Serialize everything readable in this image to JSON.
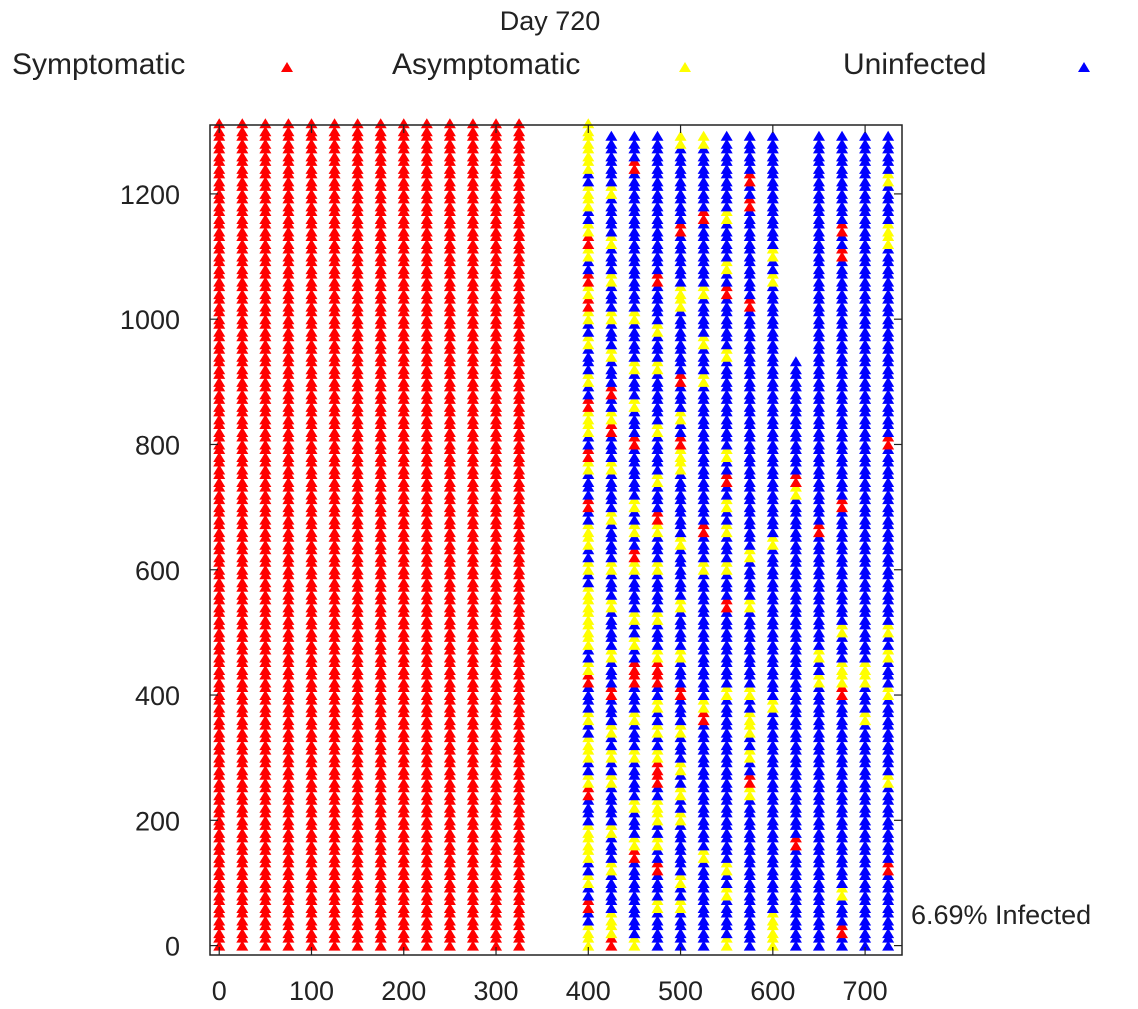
{
  "chart_data": {
    "type": "scatter",
    "title": "Day 720",
    "annotation": "6.69% Infected",
    "xlim": [
      -10,
      740
    ],
    "ylim": [
      -15,
      1310
    ],
    "xticks": [
      0,
      100,
      200,
      300,
      400,
      500,
      600,
      700
    ],
    "yticks": [
      0,
      200,
      400,
      600,
      800,
      1000,
      1200
    ],
    "marker": "triangle",
    "grid": false,
    "legend_position": "top",
    "row_step": 20,
    "row_max": 1300,
    "colors": {
      "Symptomatic": "#ff0000",
      "Asymptomatic": "#ffff00",
      "Uninfected": "#0000ff"
    },
    "series": [
      {
        "name": "Symptomatic",
        "marker_color": "#ff0000"
      },
      {
        "name": "Asymptomatic",
        "marker_color": "#ffff00"
      },
      {
        "name": "Uninfected",
        "marker_color": "#0000ff"
      }
    ],
    "columns": [
      {
        "x": 0,
        "default": "Symptomatic",
        "top": 1300
      },
      {
        "x": 25,
        "default": "Symptomatic",
        "top": 1300
      },
      {
        "x": 50,
        "default": "Symptomatic",
        "top": 1300
      },
      {
        "x": 75,
        "default": "Symptomatic",
        "top": 1300
      },
      {
        "x": 100,
        "default": "Symptomatic",
        "top": 1300
      },
      {
        "x": 125,
        "default": "Symptomatic",
        "top": 1300
      },
      {
        "x": 150,
        "default": "Symptomatic",
        "top": 1300
      },
      {
        "x": 175,
        "default": "Symptomatic",
        "top": 1300
      },
      {
        "x": 200,
        "default": "Symptomatic",
        "top": 1300
      },
      {
        "x": 225,
        "default": "Symptomatic",
        "top": 1300
      },
      {
        "x": 250,
        "default": "Symptomatic",
        "top": 1300
      },
      {
        "x": 275,
        "default": "Symptomatic",
        "top": 1300
      },
      {
        "x": 300,
        "default": "Symptomatic",
        "top": 1300
      },
      {
        "x": 325,
        "default": "Symptomatic",
        "top": 1300
      },
      {
        "x": 400,
        "default": "Uninfected",
        "top": 1300,
        "overrides": [
          [
            "Asymptomatic",
            [
              0,
              20,
              100,
              140,
              160,
              180,
              260,
              300,
              320,
              360,
              440,
              480,
              500,
              520,
              540,
              560,
              600,
              640,
              660,
              700,
              760,
              820,
              840,
              900,
              960,
              1000,
              1040,
              1060,
              1100,
              1140,
              1180,
              1200,
              1240,
              1260,
              1280,
              1300
            ]
          ],
          [
            "Symptomatic",
            [
              60,
              240,
              420,
              700,
              780,
              860,
              1020,
              1060,
              1120
            ]
          ]
        ]
      },
      {
        "x": 425,
        "default": "Uninfected",
        "top": 1280,
        "overrides": [
          [
            "Asymptomatic",
            [
              20,
              40,
              120,
              180,
              260,
              300,
              340,
              400,
              460,
              540,
              600,
              680,
              760,
              840,
              940,
              1000,
              1060,
              1120,
              1200,
              1300
            ]
          ],
          [
            "Symptomatic",
            [
              0,
              400,
              820,
              880
            ]
          ]
        ]
      },
      {
        "x": 450,
        "default": "Uninfected",
        "top": 1280,
        "overrides": [
          [
            "Asymptomatic",
            [
              0,
              160,
              220,
              300,
              360,
              480,
              520,
              600,
              660,
              700,
              800,
              860,
              920,
              1000
            ]
          ],
          [
            "Symptomatic",
            [
              140,
              420,
              440,
              620,
              800,
              1240
            ]
          ]
        ]
      },
      {
        "x": 475,
        "default": "Uninfected",
        "top": 1280,
        "overrides": [
          [
            "Asymptomatic",
            [
              60,
              160,
              200,
              220,
              300,
              340,
              380,
              420,
              460,
              520,
              600,
              660,
              740,
              820,
              920,
              980
            ]
          ],
          [
            "Symptomatic",
            [
              120,
              260,
              280,
              420,
              440,
              680,
              1060
            ]
          ]
        ]
      },
      {
        "x": 500,
        "default": "Uninfected",
        "top": 1280,
        "overrides": [
          [
            "Asymptomatic",
            [
              60,
              100,
              200,
              240,
              280,
              340,
              460,
              540,
              640,
              760,
              780,
              840,
              1020,
              1040,
              1280
            ]
          ],
          [
            "Symptomatic",
            [
              400,
              800,
              900,
              1140
            ]
          ]
        ]
      },
      {
        "x": 525,
        "default": "Uninfected",
        "top": 1280,
        "overrides": [
          [
            "Asymptomatic",
            [
              140,
              380,
              600,
              900,
              960,
              1040,
              1280
            ]
          ],
          [
            "Symptomatic",
            [
              360,
              660,
              1160
            ]
          ]
        ]
      },
      {
        "x": 550,
        "default": "Uninfected",
        "top": 1280,
        "overrides": [
          [
            "Asymptomatic",
            [
              0,
              80,
              120,
              400,
              600,
              660,
              700,
              780,
              940,
              1080,
              1160
            ]
          ],
          [
            "Symptomatic",
            [
              540,
              740,
              1040
            ]
          ]
        ]
      },
      {
        "x": 575,
        "default": "Uninfected",
        "top": 1280,
        "overrides": [
          [
            "Asymptomatic",
            [
              240,
              300,
              340,
              360,
              400,
              540,
              620
            ]
          ],
          [
            "Symptomatic",
            [
              260,
              1020,
              1180,
              1220
            ]
          ]
        ]
      },
      {
        "x": 600,
        "default": "Uninfected",
        "top": 1280,
        "overrides": [
          [
            "Asymptomatic",
            [
              0,
              20,
              40,
              380,
              640,
              1060,
              1100
            ]
          ]
        ]
      },
      {
        "x": 625,
        "default": "Uninfected",
        "top": 920,
        "overrides": [
          [
            "Asymptomatic",
            [
              720
            ]
          ],
          [
            "Symptomatic",
            [
              160,
              740
            ]
          ]
        ]
      },
      {
        "x": 650,
        "default": "Uninfected",
        "top": 1280,
        "overrides": [
          [
            "Asymptomatic",
            [
              420,
              460
            ]
          ],
          [
            "Symptomatic",
            [
              660
            ]
          ]
        ]
      },
      {
        "x": 675,
        "default": "Uninfected",
        "top": 1280,
        "overrides": [
          [
            "Asymptomatic",
            [
              80,
              420,
              440,
              500
            ]
          ],
          [
            "Symptomatic",
            [
              20,
              400,
              700,
              1100,
              1140
            ]
          ]
        ]
      },
      {
        "x": 700,
        "default": "Uninfected",
        "top": 1280,
        "overrides": [
          [
            "Asymptomatic",
            [
              360,
              420,
              440
            ]
          ]
        ]
      },
      {
        "x": 725,
        "default": "Uninfected",
        "top": 1280,
        "overrides": [
          [
            "Asymptomatic",
            [
              260,
              400,
              460,
              500,
              1120,
              1140,
              1220
            ]
          ],
          [
            "Symptomatic",
            [
              120,
              800
            ]
          ]
        ]
      }
    ]
  }
}
